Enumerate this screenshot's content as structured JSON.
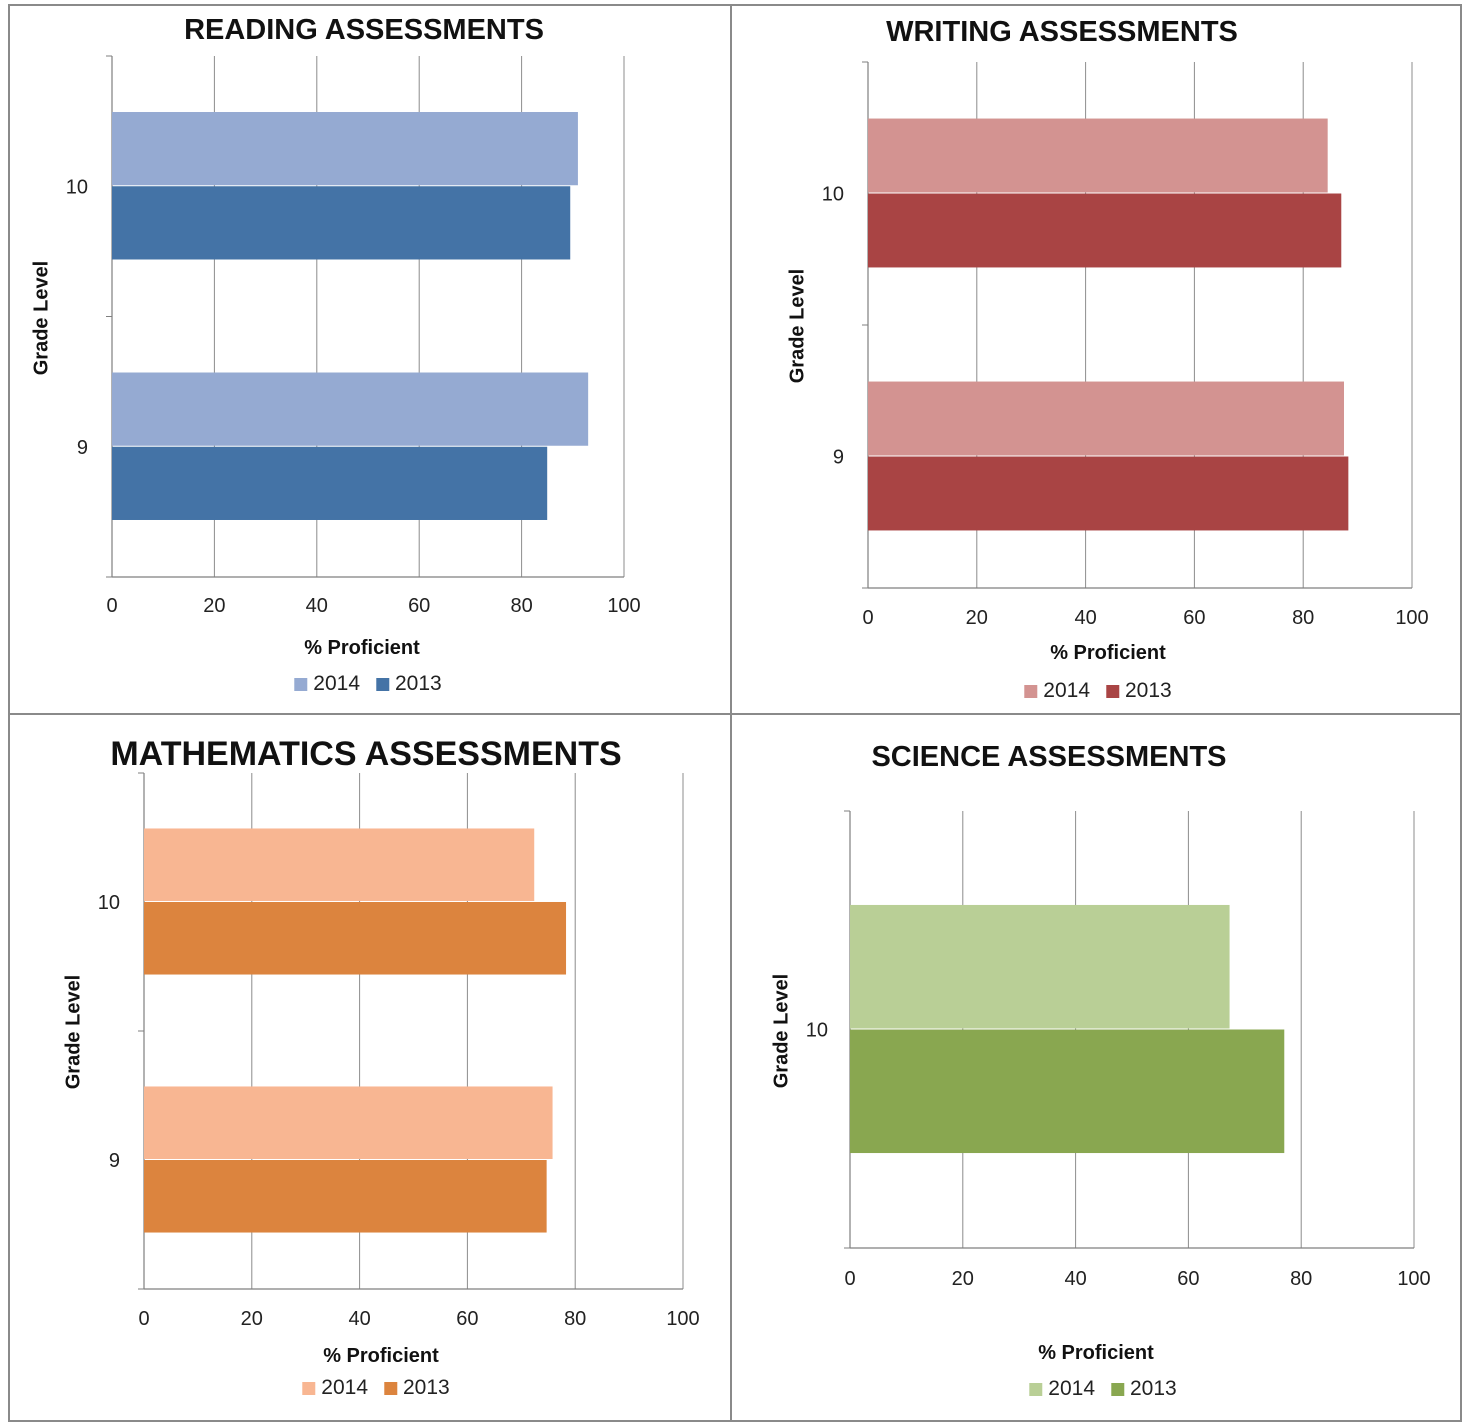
{
  "chart_data": [
    {
      "type": "bar",
      "orientation": "horizontal",
      "title": "READING ASSESSMENTS",
      "xlabel": "% Proficient",
      "ylabel": "Grade Level",
      "categories": [
        "10",
        "9"
      ],
      "x_ticks": [
        "0",
        "20",
        "40",
        "60",
        "80",
        "100"
      ],
      "xlim": [
        0,
        100
      ],
      "grid": true,
      "legend": "bottom",
      "series": [
        {
          "name": "2014",
          "color": "#95aad2",
          "values": [
            91,
            93
          ]
        },
        {
          "name": "2013",
          "color": "#4473a6",
          "values": [
            89.5,
            85
          ]
        }
      ]
    },
    {
      "type": "bar",
      "orientation": "horizontal",
      "title": "WRITING ASSESSMENTS",
      "xlabel": "% Proficient",
      "ylabel": "Grade Level",
      "categories": [
        "10",
        "9"
      ],
      "x_ticks": [
        "0",
        "20",
        "40",
        "60",
        "80",
        "100"
      ],
      "xlim": [
        0,
        100
      ],
      "grid": true,
      "legend": "bottom",
      "series": [
        {
          "name": "2014",
          "color": "#d39391",
          "values": [
            84.5,
            87.5
          ]
        },
        {
          "name": "2013",
          "color": "#a94444",
          "values": [
            87,
            88.3
          ]
        }
      ]
    },
    {
      "type": "bar",
      "orientation": "horizontal",
      "title": "MATHEMATICS ASSESSMENTS",
      "xlabel": "% Proficient",
      "ylabel": "Grade Level",
      "categories": [
        "10",
        "9"
      ],
      "x_ticks": [
        "0",
        "20",
        "40",
        "60",
        "80",
        "100"
      ],
      "xlim": [
        0,
        100
      ],
      "grid": true,
      "legend": "bottom",
      "series": [
        {
          "name": "2014",
          "color": "#f8b692",
          "values": [
            72.4,
            75.8
          ]
        },
        {
          "name": "2013",
          "color": "#dc843e",
          "values": [
            78.3,
            74.7
          ]
        }
      ]
    },
    {
      "type": "bar",
      "orientation": "horizontal",
      "title": "SCIENCE ASSESSMENTS",
      "xlabel": "% Proficient",
      "ylabel": "Grade Level",
      "categories": [
        "10"
      ],
      "x_ticks": [
        "0",
        "20",
        "40",
        "60",
        "80",
        "100"
      ],
      "xlim": [
        0,
        100
      ],
      "grid": true,
      "legend": "bottom",
      "series": [
        {
          "name": "2014",
          "color": "#b9cf96",
          "values": [
            67.3
          ]
        },
        {
          "name": "2013",
          "color": "#89a750",
          "values": [
            77
          ]
        }
      ]
    }
  ]
}
